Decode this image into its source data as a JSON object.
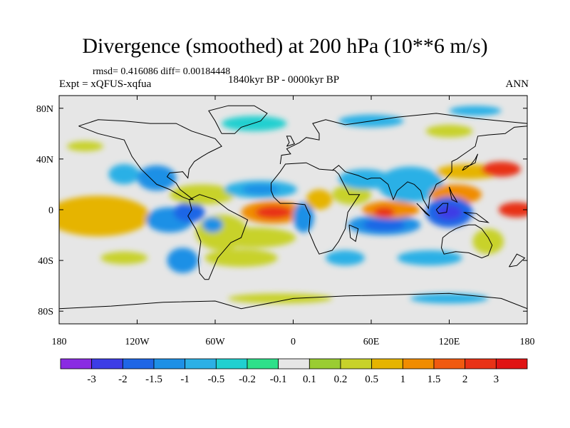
{
  "chart_data": {
    "type": "heatmap",
    "title": "Divergence (smoothed) at 200 hPa (10**6 m/s)",
    "stats": "rmsd= 0.416086 diff= 0.00184448",
    "experiment": "Expt = xQFUS-xqfua",
    "period": "1840kyr BP - 0000kyr BP",
    "season": "ANN",
    "x_axis": {
      "range": [
        -180,
        180
      ],
      "ticks": [
        -180,
        -120,
        -60,
        0,
        60,
        120,
        180
      ],
      "tick_labels": [
        "180",
        "120W",
        "60W",
        "0",
        "60E",
        "120E",
        "180"
      ]
    },
    "y_axis": {
      "range": [
        -90,
        90
      ],
      "ticks": [
        80,
        40,
        0,
        -40,
        -80
      ],
      "tick_labels": [
        "80N",
        "40N",
        "0",
        "40S",
        "80S"
      ]
    },
    "colorbar": {
      "labels": [
        "-3",
        "-2",
        "-1.5",
        "-1",
        "-0.5",
        "-0.2",
        "-0.1",
        "0.1",
        "0.2",
        "0.5",
        "1",
        "1.5",
        "2",
        "3"
      ],
      "colors": [
        "#8a2be2",
        "#3d3de6",
        "#1f66e6",
        "#1e90e6",
        "#2cb0e6",
        "#20d0d0",
        "#2ee08a",
        "#e6e6e6",
        "#9acd32",
        "#c8d22a",
        "#e6b400",
        "#f08c00",
        "#f05a10",
        "#e83216",
        "#e01414"
      ]
    },
    "anomalies": [
      {
        "lon": -145,
        "lat": -8,
        "rx": 22,
        "ry": 8,
        "bin": 14
      },
      {
        "lon": -145,
        "lat": -8,
        "rx": 32,
        "ry": 12,
        "bin": 12
      },
      {
        "lon": -150,
        "lat": -5,
        "rx": 40,
        "ry": 16,
        "bin": 10
      },
      {
        "lon": -95,
        "lat": -8,
        "rx": 18,
        "ry": 10,
        "bin": 3
      },
      {
        "lon": -80,
        "lat": -2,
        "rx": 12,
        "ry": 8,
        "bin": 2
      },
      {
        "lon": -130,
        "lat": 28,
        "rx": 12,
        "ry": 8,
        "bin": 4
      },
      {
        "lon": -105,
        "lat": 25,
        "rx": 15,
        "ry": 10,
        "bin": 3
      },
      {
        "lon": -70,
        "lat": 12,
        "rx": 25,
        "ry": 8,
        "bin": 9
      },
      {
        "lon": -55,
        "lat": -18,
        "rx": 20,
        "ry": 14,
        "bin": 9
      },
      {
        "lon": -62,
        "lat": -12,
        "rx": 8,
        "ry": 6,
        "bin": 3
      },
      {
        "lon": -25,
        "lat": 16,
        "rx": 28,
        "ry": 7,
        "bin": 4
      },
      {
        "lon": -25,
        "lat": 16,
        "rx": 14,
        "ry": 4,
        "bin": 3
      },
      {
        "lon": -15,
        "lat": -2,
        "rx": 25,
        "ry": 9,
        "bin": 11
      },
      {
        "lon": -15,
        "lat": -2,
        "rx": 14,
        "ry": 5,
        "bin": 13
      },
      {
        "lon": -30,
        "lat": -22,
        "rx": 32,
        "ry": 8,
        "bin": 9
      },
      {
        "lon": 8,
        "lat": -6,
        "rx": 8,
        "ry": 12,
        "bin": 3
      },
      {
        "lon": 20,
        "lat": 8,
        "rx": 10,
        "ry": 8,
        "bin": 10
      },
      {
        "lon": 45,
        "lat": 12,
        "rx": 15,
        "ry": 8,
        "bin": 9
      },
      {
        "lon": 55,
        "lat": 24,
        "rx": 20,
        "ry": 8,
        "bin": 4
      },
      {
        "lon": 90,
        "lat": 20,
        "rx": 25,
        "ry": 14,
        "bin": 4
      },
      {
        "lon": 70,
        "lat": -12,
        "rx": 28,
        "ry": 8,
        "bin": 3
      },
      {
        "lon": 70,
        "lat": -12,
        "rx": 16,
        "ry": 5,
        "bin": 2
      },
      {
        "lon": 75,
        "lat": 0,
        "rx": 22,
        "ry": 7,
        "bin": 11
      },
      {
        "lon": 70,
        "lat": -2,
        "rx": 8,
        "ry": 4,
        "bin": 13
      },
      {
        "lon": 125,
        "lat": 12,
        "rx": 20,
        "ry": 8,
        "bin": 11
      },
      {
        "lon": 135,
        "lat": 30,
        "rx": 25,
        "ry": 6,
        "bin": 10
      },
      {
        "lon": 160,
        "lat": 32,
        "rx": 15,
        "ry": 6,
        "bin": 13
      },
      {
        "lon": 120,
        "lat": -2,
        "rx": 18,
        "ry": 12,
        "bin": 2
      },
      {
        "lon": 120,
        "lat": -2,
        "rx": 10,
        "ry": 6,
        "bin": 1
      },
      {
        "lon": 172,
        "lat": 0,
        "rx": 14,
        "ry": 6,
        "bin": 13
      },
      {
        "lon": 150,
        "lat": -25,
        "rx": 12,
        "ry": 10,
        "bin": 9
      },
      {
        "lon": 105,
        "lat": -38,
        "rx": 25,
        "ry": 6,
        "bin": 4
      },
      {
        "lon": -130,
        "lat": -38,
        "rx": 18,
        "ry": 5,
        "bin": 9
      },
      {
        "lon": -85,
        "lat": -40,
        "rx": 12,
        "ry": 10,
        "bin": 3
      },
      {
        "lon": -40,
        "lat": -38,
        "rx": 28,
        "ry": 7,
        "bin": 9
      },
      {
        "lon": 40,
        "lat": -38,
        "rx": 15,
        "ry": 6,
        "bin": 4
      },
      {
        "lon": -30,
        "lat": 68,
        "rx": 25,
        "ry": 6,
        "bin": 5
      },
      {
        "lon": 60,
        "lat": 70,
        "rx": 25,
        "ry": 5,
        "bin": 4
      },
      {
        "lon": 140,
        "lat": 78,
        "rx": 20,
        "ry": 4,
        "bin": 4
      },
      {
        "lon": -160,
        "lat": 50,
        "rx": 14,
        "ry": 4,
        "bin": 9
      },
      {
        "lon": 120,
        "lat": 62,
        "rx": 18,
        "ry": 5,
        "bin": 9
      },
      {
        "lon": -10,
        "lat": -70,
        "rx": 40,
        "ry": 4,
        "bin": 9
      },
      {
        "lon": 120,
        "lat": -70,
        "rx": 30,
        "ry": 4,
        "bin": 4
      }
    ]
  }
}
